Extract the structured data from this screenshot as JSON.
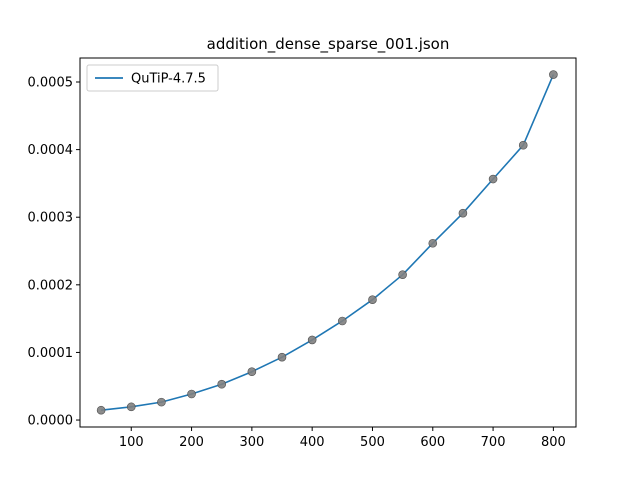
{
  "chart_data": {
    "type": "line",
    "title": "addition_dense_sparse_001.json",
    "xlabel": "",
    "ylabel": "",
    "xlim": [
      15,
      837.5
    ],
    "ylim": [
      -1.03e-05,
      0.0005355
    ],
    "x_ticks": [
      100,
      200,
      300,
      400,
      500,
      600,
      700,
      800
    ],
    "x_tick_labels": [
      "100",
      "200",
      "300",
      "400",
      "500",
      "600",
      "700",
      "800"
    ],
    "y_ticks": [
      0.0,
      0.0001,
      0.0002,
      0.0003,
      0.0004,
      0.0005
    ],
    "y_tick_labels": [
      "0.0000",
      "0.0001",
      "0.0002",
      "0.0003",
      "0.0004",
      "0.0005"
    ],
    "grid": false,
    "legend_position": "upper-left",
    "series": [
      {
        "name": "QuTiP-4.7.5",
        "color": "#1f77b4",
        "marker_color": "#7f7f7f",
        "x": [
          50,
          100,
          150,
          200,
          250,
          300,
          350,
          400,
          450,
          500,
          550,
          600,
          650,
          700,
          750,
          800
        ],
        "y": [
          1.45e-05,
          1.95e-05,
          2.65e-05,
          3.85e-05,
          5.3e-05,
          7.15e-05,
          9.3e-05,
          0.0001185,
          0.0001465,
          0.000178,
          0.000215,
          0.0002615,
          0.000306,
          0.0003565,
          0.0004065,
          0.000511
        ]
      }
    ]
  }
}
